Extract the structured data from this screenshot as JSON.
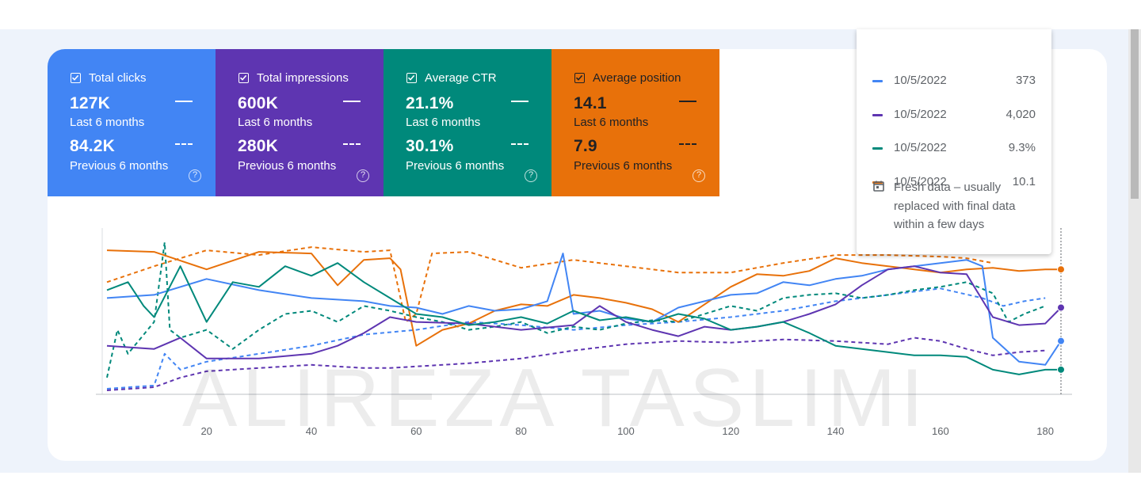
{
  "metrics": [
    {
      "label": "Total clicks",
      "current": "127K",
      "current_period": "Last 6 months",
      "previous": "84.2K",
      "previous_period": "Previous 6 months",
      "color": "#4285f4",
      "help": "?"
    },
    {
      "label": "Total impressions",
      "current": "600K",
      "current_period": "Last 6 months",
      "previous": "280K",
      "previous_period": "Previous 6 months",
      "color": "#5e35b1",
      "help": "?"
    },
    {
      "label": "Average CTR",
      "current": "21.1%",
      "current_period": "Last 6 months",
      "previous": "30.1%",
      "previous_period": "Previous 6 months",
      "color": "#00897b",
      "help": "?"
    },
    {
      "label": "Average position",
      "current": "14.1",
      "current_period": "Last 6 months",
      "previous": "7.9",
      "previous_period": "Previous 6 months",
      "color": "#e8710a",
      "help": "?"
    }
  ],
  "tooltip": {
    "rows": [
      {
        "date": "10/5/2022",
        "value": "373",
        "color": "#4285f4"
      },
      {
        "date": "10/5/2022",
        "value": "4,020",
        "color": "#5e35b1"
      },
      {
        "date": "10/5/2022",
        "value": "9.3%",
        "color": "#00897b"
      },
      {
        "date": "10/5/2022",
        "value": "10.1",
        "color": "#e8710a"
      }
    ],
    "fresh_note": "Fresh data – usually replaced with final data within a few days"
  },
  "watermark": "ALIREZA TASLIMI",
  "chart_data": {
    "type": "line",
    "x_range": [
      1,
      183
    ],
    "x_ticks": [
      20,
      40,
      60,
      80,
      100,
      120,
      140,
      160,
      180
    ],
    "y_range": [
      0,
      100
    ],
    "y_axis_hidden": true,
    "legend": "metric tiles above chart",
    "series": [
      {
        "name": "Average position",
        "period": "Last 6 months",
        "style": "solid",
        "color": "#e8710a",
        "points": [
          [
            1,
            90
          ],
          [
            10,
            89
          ],
          [
            20,
            78
          ],
          [
            30,
            89
          ],
          [
            40,
            88
          ],
          [
            45,
            68
          ],
          [
            50,
            84
          ],
          [
            55,
            85
          ],
          [
            57,
            78
          ],
          [
            60,
            30
          ],
          [
            65,
            40
          ],
          [
            70,
            44
          ],
          [
            75,
            52
          ],
          [
            80,
            56
          ],
          [
            85,
            55
          ],
          [
            90,
            62
          ],
          [
            95,
            60
          ],
          [
            100,
            57
          ],
          [
            105,
            53
          ],
          [
            110,
            45
          ],
          [
            115,
            56
          ],
          [
            120,
            67
          ],
          [
            125,
            75
          ],
          [
            130,
            74
          ],
          [
            135,
            77
          ],
          [
            140,
            85
          ],
          [
            145,
            82
          ],
          [
            150,
            80
          ],
          [
            155,
            78
          ],
          [
            160,
            76
          ],
          [
            165,
            78
          ],
          [
            170,
            79
          ],
          [
            175,
            77
          ],
          [
            180,
            78
          ],
          [
            183,
            78
          ]
        ]
      },
      {
        "name": "Average position",
        "period": "Previous 6 months",
        "style": "dashed",
        "color": "#e8710a",
        "points": [
          [
            1,
            70
          ],
          [
            10,
            80
          ],
          [
            20,
            90
          ],
          [
            30,
            87
          ],
          [
            40,
            92
          ],
          [
            50,
            89
          ],
          [
            55,
            90
          ],
          [
            58,
            45
          ],
          [
            60,
            50
          ],
          [
            63,
            88
          ],
          [
            70,
            89
          ],
          [
            80,
            79
          ],
          [
            90,
            84
          ],
          [
            100,
            80
          ],
          [
            110,
            76
          ],
          [
            120,
            76
          ],
          [
            130,
            82
          ],
          [
            140,
            87
          ],
          [
            150,
            87
          ],
          [
            160,
            86
          ],
          [
            165,
            85
          ],
          [
            170,
            82
          ]
        ]
      },
      {
        "name": "Total clicks",
        "period": "Last 6 months",
        "style": "solid",
        "color": "#4285f4",
        "points": [
          [
            1,
            60
          ],
          [
            10,
            62
          ],
          [
            20,
            72
          ],
          [
            30,
            65
          ],
          [
            40,
            60
          ],
          [
            50,
            58
          ],
          [
            55,
            55
          ],
          [
            60,
            54
          ],
          [
            65,
            50
          ],
          [
            70,
            55
          ],
          [
            75,
            52
          ],
          [
            80,
            53
          ],
          [
            85,
            58
          ],
          [
            88,
            88
          ],
          [
            90,
            50
          ],
          [
            95,
            52
          ],
          [
            100,
            47
          ],
          [
            105,
            45
          ],
          [
            110,
            54
          ],
          [
            115,
            58
          ],
          [
            120,
            62
          ],
          [
            125,
            63
          ],
          [
            130,
            70
          ],
          [
            135,
            68
          ],
          [
            140,
            72
          ],
          [
            145,
            74
          ],
          [
            150,
            78
          ],
          [
            155,
            80
          ],
          [
            160,
            82
          ],
          [
            165,
            84
          ],
          [
            168,
            80
          ],
          [
            170,
            35
          ],
          [
            175,
            20
          ],
          [
            180,
            18
          ],
          [
            183,
            33
          ]
        ]
      },
      {
        "name": "Total clicks",
        "period": "Previous 6 months",
        "style": "dashed",
        "color": "#4285f4",
        "points": [
          [
            1,
            3
          ],
          [
            10,
            5
          ],
          [
            12,
            25
          ],
          [
            15,
            15
          ],
          [
            20,
            20
          ],
          [
            30,
            25
          ],
          [
            40,
            30
          ],
          [
            50,
            37
          ],
          [
            60,
            40
          ],
          [
            70,
            45
          ],
          [
            80,
            43
          ],
          [
            90,
            40
          ],
          [
            100,
            43
          ],
          [
            110,
            45
          ],
          [
            120,
            48
          ],
          [
            130,
            52
          ],
          [
            140,
            58
          ],
          [
            150,
            62
          ],
          [
            160,
            66
          ],
          [
            168,
            60
          ],
          [
            172,
            55
          ],
          [
            176,
            58
          ],
          [
            180,
            60
          ]
        ]
      },
      {
        "name": "Total impressions",
        "period": "Last 6 months",
        "style": "solid",
        "color": "#5e35b1",
        "points": [
          [
            1,
            30
          ],
          [
            10,
            28
          ],
          [
            15,
            35
          ],
          [
            20,
            22
          ],
          [
            30,
            22
          ],
          [
            40,
            25
          ],
          [
            45,
            30
          ],
          [
            50,
            38
          ],
          [
            55,
            48
          ],
          [
            60,
            45
          ],
          [
            70,
            44
          ],
          [
            80,
            40
          ],
          [
            90,
            43
          ],
          [
            95,
            55
          ],
          [
            100,
            45
          ],
          [
            105,
            40
          ],
          [
            110,
            36
          ],
          [
            115,
            42
          ],
          [
            120,
            40
          ],
          [
            125,
            42
          ],
          [
            130,
            45
          ],
          [
            135,
            50
          ],
          [
            140,
            56
          ],
          [
            145,
            68
          ],
          [
            150,
            78
          ],
          [
            155,
            80
          ],
          [
            160,
            76
          ],
          [
            165,
            75
          ],
          [
            170,
            48
          ],
          [
            175,
            43
          ],
          [
            180,
            44
          ],
          [
            183,
            54
          ]
        ]
      },
      {
        "name": "Total impressions",
        "period": "Previous 6 months",
        "style": "dashed",
        "color": "#5e35b1",
        "points": [
          [
            1,
            2
          ],
          [
            10,
            4
          ],
          [
            15,
            10
          ],
          [
            20,
            14
          ],
          [
            30,
            16
          ],
          [
            40,
            18
          ],
          [
            50,
            16
          ],
          [
            55,
            16
          ],
          [
            60,
            17
          ],
          [
            70,
            19
          ],
          [
            80,
            22
          ],
          [
            90,
            27
          ],
          [
            100,
            31
          ],
          [
            110,
            33
          ],
          [
            120,
            32
          ],
          [
            130,
            34
          ],
          [
            140,
            33
          ],
          [
            150,
            31
          ],
          [
            155,
            35
          ],
          [
            160,
            33
          ],
          [
            165,
            28
          ],
          [
            170,
            24
          ],
          [
            175,
            26
          ],
          [
            180,
            27
          ]
        ]
      },
      {
        "name": "Average CTR",
        "period": "Last 6 months",
        "style": "solid",
        "color": "#00897b",
        "points": [
          [
            1,
            65
          ],
          [
            5,
            70
          ],
          [
            8,
            55
          ],
          [
            10,
            48
          ],
          [
            15,
            80
          ],
          [
            20,
            45
          ],
          [
            25,
            70
          ],
          [
            30,
            67
          ],
          [
            35,
            80
          ],
          [
            40,
            74
          ],
          [
            45,
            82
          ],
          [
            50,
            70
          ],
          [
            55,
            60
          ],
          [
            60,
            50
          ],
          [
            65,
            48
          ],
          [
            70,
            43
          ],
          [
            75,
            45
          ],
          [
            80,
            48
          ],
          [
            85,
            44
          ],
          [
            90,
            52
          ],
          [
            95,
            46
          ],
          [
            100,
            48
          ],
          [
            105,
            45
          ],
          [
            110,
            50
          ],
          [
            115,
            47
          ],
          [
            120,
            40
          ],
          [
            125,
            42
          ],
          [
            130,
            45
          ],
          [
            135,
            38
          ],
          [
            140,
            30
          ],
          [
            145,
            28
          ],
          [
            150,
            26
          ],
          [
            155,
            24
          ],
          [
            160,
            24
          ],
          [
            165,
            23
          ],
          [
            170,
            15
          ],
          [
            175,
            12
          ],
          [
            180,
            15
          ],
          [
            183,
            15
          ]
        ]
      },
      {
        "name": "Average CTR",
        "period": "Previous 6 months",
        "style": "dashed",
        "color": "#00897b",
        "points": [
          [
            1,
            10
          ],
          [
            3,
            40
          ],
          [
            5,
            25
          ],
          [
            10,
            45
          ],
          [
            12,
            95
          ],
          [
            13,
            40
          ],
          [
            15,
            35
          ],
          [
            20,
            40
          ],
          [
            25,
            28
          ],
          [
            30,
            40
          ],
          [
            35,
            50
          ],
          [
            40,
            52
          ],
          [
            45,
            45
          ],
          [
            50,
            55
          ],
          [
            55,
            52
          ],
          [
            60,
            48
          ],
          [
            65,
            45
          ],
          [
            70,
            40
          ],
          [
            75,
            42
          ],
          [
            80,
            45
          ],
          [
            85,
            38
          ],
          [
            90,
            42
          ],
          [
            95,
            40
          ],
          [
            100,
            44
          ],
          [
            105,
            46
          ],
          [
            110,
            45
          ],
          [
            115,
            50
          ],
          [
            120,
            55
          ],
          [
            125,
            52
          ],
          [
            130,
            60
          ],
          [
            135,
            62
          ],
          [
            140,
            63
          ],
          [
            145,
            60
          ],
          [
            150,
            62
          ],
          [
            155,
            65
          ],
          [
            160,
            67
          ],
          [
            165,
            70
          ],
          [
            170,
            63
          ],
          [
            173,
            45
          ],
          [
            176,
            50
          ],
          [
            180,
            55
          ]
        ]
      }
    ]
  }
}
